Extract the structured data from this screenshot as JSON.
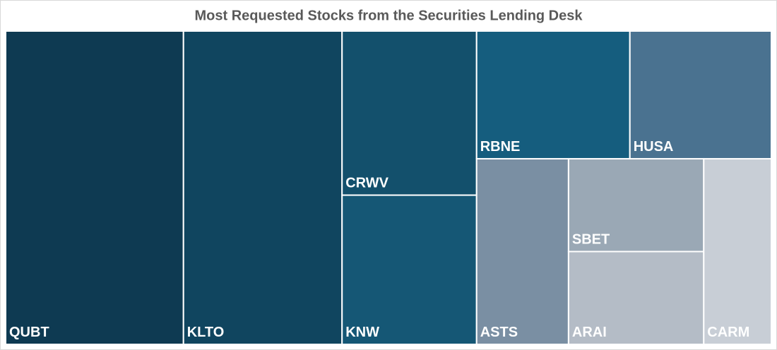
{
  "chart_data": {
    "type": "treemap",
    "title": "Most Requested Stocks from the Securities Lending Desk",
    "categories": [
      "QUBT",
      "KLTO",
      "CRWV",
      "KNW",
      "RBNE",
      "HUSA",
      "ASTS",
      "SBET",
      "ARAI",
      "CARM"
    ],
    "values": [
      111,
      99,
      44,
      40,
      39,
      36,
      34,
      25,
      25,
      25
    ],
    "colors": [
      "#0e3a52",
      "#10455f",
      "#13506c",
      "#155775",
      "#155d7e",
      "#4a7290",
      "#7a8fa3",
      "#9aa8b5",
      "#b4bcc6",
      "#c8ced6"
    ]
  }
}
